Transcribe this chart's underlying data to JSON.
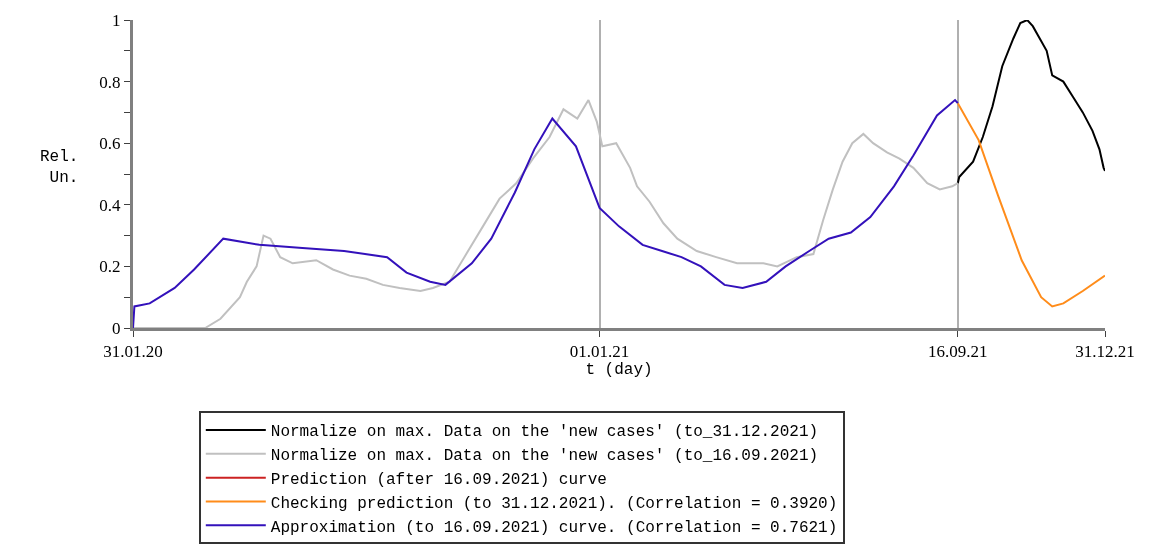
{
  "chart_data": {
    "type": "line",
    "xlabel": "t (day)",
    "ylabel": "Rel.\nUn.",
    "xlim": [
      "2020-01-31",
      "2021-12-31"
    ],
    "xticks": [
      {
        "value": "2020-01-31",
        "label": "31.01.20"
      },
      {
        "value": "2021-01-01",
        "label": "01.01.21"
      },
      {
        "value": "2021-09-16",
        "label": "16.09.21"
      },
      {
        "value": "2021-12-31",
        "label": "31.12.21"
      }
    ],
    "ylim": [
      0,
      1
    ],
    "yticks": [
      0,
      {
        "value": 0.1,
        "label": null
      },
      0.2,
      {
        "value": 0.3,
        "label": null
      },
      0.4,
      {
        "value": 0.5,
        "label": null
      },
      0.6,
      {
        "value": 0.7,
        "label": null
      },
      0.8,
      {
        "value": 0.9,
        "label": null
      },
      1
    ],
    "grid": "x",
    "legend": "bottom",
    "marker": "none",
    "line_style": "solid",
    "series": [
      {
        "name": "Normalize on max. Data on the 'new cases' (to_31.12.2021)",
        "color": "#000000",
        "x": [
          "2021-09-16",
          "2021-09-17",
          "2021-09-27",
          "2021-10-04",
          "2021-10-11",
          "2021-10-18",
          "2021-10-26",
          "2021-10-31",
          "2021-11-05",
          "2021-11-09",
          "2021-11-14",
          "2021-11-19",
          "2021-11-23",
          "2021-12-01",
          "2021-12-08",
          "2021-12-15",
          "2021-12-22",
          "2021-12-27",
          "2021-12-30",
          "2021-12-31"
        ],
        "values": [
          0.47,
          0.49,
          0.54,
          0.62,
          0.72,
          0.85,
          0.94,
          0.99,
          1.0,
          0.98,
          0.94,
          0.9,
          0.82,
          0.8,
          0.75,
          0.7,
          0.64,
          0.58,
          0.52,
          0.51
        ]
      },
      {
        "name": "Normalize on max. Data on the 'new cases' (to_16.09.2021)",
        "color": "#c0c0c0",
        "x": [
          "2020-01-31",
          "2020-03-23",
          "2020-04-03",
          "2020-04-17",
          "2020-04-22",
          "2020-04-29",
          "2020-05-04",
          "2020-05-09",
          "2020-05-16",
          "2020-05-25",
          "2020-06-11",
          "2020-06-23",
          "2020-07-05",
          "2020-07-17",
          "2020-07-29",
          "2020-08-10",
          "2020-08-25",
          "2020-09-03",
          "2020-09-15",
          "2020-09-27",
          "2020-10-09",
          "2020-10-21",
          "2020-11-02",
          "2020-11-14",
          "2020-11-26",
          "2020-12-06",
          "2020-12-16",
          "2020-12-24",
          "2020-12-30",
          "2021-01-03",
          "2021-01-13",
          "2021-01-23",
          "2021-01-28",
          "2021-02-06",
          "2021-02-16",
          "2021-02-26",
          "2021-03-12",
          "2021-03-26",
          "2021-04-10",
          "2021-04-29",
          "2021-05-09",
          "2021-05-23",
          "2021-06-04",
          "2021-06-11",
          "2021-06-18",
          "2021-06-25",
          "2021-07-02",
          "2021-07-10",
          "2021-07-17",
          "2021-07-27",
          "2021-08-05",
          "2021-08-15",
          "2021-08-25",
          "2021-09-03",
          "2021-09-12",
          "2021-09-16"
        ],
        "values": [
          0,
          0,
          0.03,
          0.1,
          0.15,
          0.2,
          0.3,
          0.29,
          0.23,
          0.21,
          0.22,
          0.19,
          0.17,
          0.16,
          0.14,
          0.13,
          0.12,
          0.13,
          0.15,
          0.24,
          0.33,
          0.42,
          0.47,
          0.55,
          0.62,
          0.71,
          0.68,
          0.74,
          0.67,
          0.59,
          0.6,
          0.52,
          0.46,
          0.41,
          0.34,
          0.29,
          0.25,
          0.23,
          0.21,
          0.21,
          0.2,
          0.23,
          0.24,
          0.35,
          0.45,
          0.54,
          0.6,
          0.63,
          0.6,
          0.57,
          0.55,
          0.52,
          0.47,
          0.45,
          0.46,
          0.47
        ]
      },
      {
        "name": "Prediction (after 16.09.2021) curve",
        "color": "#cc2222"
      },
      {
        "name": "Checking prediction (to 31.12.2021). (Correlation = 0.3920)",
        "color": "#ff8c1a",
        "x": [
          "2021-09-16",
          "2021-10-01",
          "2021-10-15",
          "2021-11-01",
          "2021-11-15",
          "2021-11-23",
          "2021-12-01",
          "2021-12-15",
          "2021-12-31"
        ],
        "values": [
          0.73,
          0.61,
          0.43,
          0.22,
          0.1,
          0.07,
          0.08,
          0.12,
          0.17
        ]
      },
      {
        "name": "Approximation (to 16.09.2021) curve. (Correlation = 0.7621)",
        "color": "#3311bb",
        "x": [
          "2020-01-31",
          "2020-02-01",
          "2020-02-12",
          "2020-03-01",
          "2020-03-15",
          "2020-04-05",
          "2020-05-01",
          "2020-06-01",
          "2020-07-01",
          "2020-08-01",
          "2020-08-15",
          "2020-09-01",
          "2020-09-12",
          "2020-10-01",
          "2020-10-15",
          "2020-11-01",
          "2020-11-15",
          "2020-11-28",
          "2020-12-15",
          "2021-01-01",
          "2021-01-15",
          "2021-02-01",
          "2021-02-15",
          "2021-03-01",
          "2021-03-15",
          "2021-04-01",
          "2021-04-14",
          "2021-05-01",
          "2021-05-15",
          "2021-06-01",
          "2021-06-15",
          "2021-07-01",
          "2021-07-15",
          "2021-08-01",
          "2021-08-15",
          "2021-09-01",
          "2021-09-14",
          "2021-09-16"
        ],
        "values": [
          0,
          0.07,
          0.08,
          0.13,
          0.19,
          0.29,
          0.27,
          0.26,
          0.25,
          0.23,
          0.18,
          0.15,
          0.14,
          0.21,
          0.29,
          0.44,
          0.58,
          0.68,
          0.59,
          0.39,
          0.33,
          0.27,
          0.25,
          0.23,
          0.2,
          0.14,
          0.13,
          0.15,
          0.2,
          0.25,
          0.29,
          0.31,
          0.36,
          0.46,
          0.56,
          0.69,
          0.74,
          0.73
        ]
      }
    ]
  }
}
